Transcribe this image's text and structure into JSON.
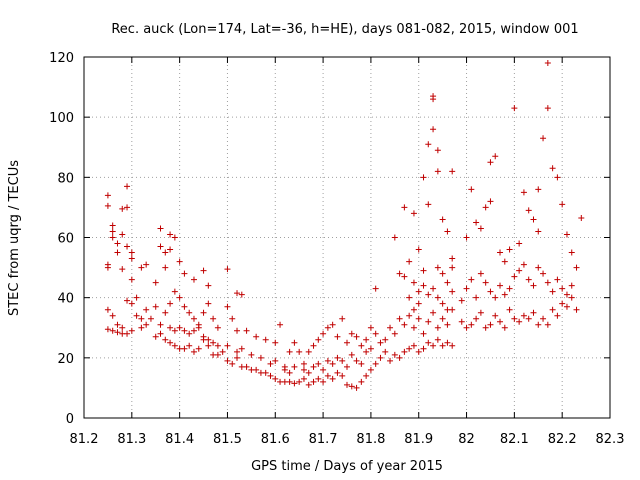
{
  "chart_data": {
    "type": "scatter",
    "title": "Rec. auck (Lon=174, Lat=-36, h=HE), days 081-082, 2015, window 001",
    "xlabel": "GPS time / Days of year 2015",
    "ylabel": "STEC from uqrg / TECUs",
    "xlim": [
      81.2,
      82.3
    ],
    "ylim": [
      0,
      120
    ],
    "x_ticks": [
      "81.2",
      "81.3",
      "81.4",
      "81.5",
      "81.6",
      "81.7",
      "81.8",
      "81.9",
      "82",
      "82.1",
      "82.2",
      "82.3"
    ],
    "y_ticks": [
      "0",
      "20",
      "40",
      "60",
      "80",
      "100",
      "120"
    ],
    "grid": true,
    "marker": "+",
    "color": "#c00000",
    "series": [
      {
        "points": [
          [
            81.25,
            74
          ],
          [
            81.25,
            70.5
          ],
          [
            81.25,
            51
          ],
          [
            81.25,
            50
          ],
          [
            81.26,
            64
          ],
          [
            81.26,
            62
          ],
          [
            81.26,
            60
          ],
          [
            81.27,
            58
          ],
          [
            81.27,
            55
          ],
          [
            81.28,
            69.5
          ],
          [
            81.28,
            61
          ],
          [
            81.28,
            49.5
          ],
          [
            81.29,
            77
          ],
          [
            81.29,
            70
          ],
          [
            81.29,
            57
          ],
          [
            81.3,
            55
          ],
          [
            81.3,
            53
          ],
          [
            81.3,
            46
          ],
          [
            81.31,
            40
          ],
          [
            81.32,
            50
          ],
          [
            81.33,
            51
          ],
          [
            81.35,
            45
          ],
          [
            81.36,
            63
          ],
          [
            81.36,
            57
          ],
          [
            81.37,
            55
          ],
          [
            81.37,
            50
          ],
          [
            81.38,
            61
          ],
          [
            81.38,
            56
          ],
          [
            81.39,
            60
          ],
          [
            81.4,
            52
          ],
          [
            81.41,
            48
          ],
          [
            81.43,
            46
          ],
          [
            81.45,
            49
          ],
          [
            81.46,
            44
          ],
          [
            81.5,
            49.5
          ],
          [
            81.52,
            41.5
          ],
          [
            81.53,
            41
          ],
          [
            81.25,
            36
          ],
          [
            81.26,
            34
          ],
          [
            81.27,
            31
          ],
          [
            81.28,
            30
          ],
          [
            81.29,
            39
          ],
          [
            81.3,
            38
          ],
          [
            81.31,
            34
          ],
          [
            81.32,
            33
          ],
          [
            81.33,
            36
          ],
          [
            81.34,
            33
          ],
          [
            81.35,
            37
          ],
          [
            81.36,
            31
          ],
          [
            81.37,
            35
          ],
          [
            81.38,
            38
          ],
          [
            81.39,
            42
          ],
          [
            81.4,
            40
          ],
          [
            81.41,
            37
          ],
          [
            81.42,
            35
          ],
          [
            81.43,
            33
          ],
          [
            81.44,
            31
          ],
          [
            81.45,
            35
          ],
          [
            81.46,
            38
          ],
          [
            81.47,
            33
          ],
          [
            81.48,
            30
          ],
          [
            81.5,
            37
          ],
          [
            81.51,
            33
          ],
          [
            81.52,
            29
          ],
          [
            81.54,
            29
          ],
          [
            81.56,
            27
          ],
          [
            81.58,
            26
          ],
          [
            81.6,
            25
          ],
          [
            81.61,
            31
          ],
          [
            81.25,
            29.5
          ],
          [
            81.26,
            29
          ],
          [
            81.27,
            28.5
          ],
          [
            81.28,
            28
          ],
          [
            81.29,
            28
          ],
          [
            81.3,
            29
          ],
          [
            81.32,
            30
          ],
          [
            81.33,
            31
          ],
          [
            81.35,
            27
          ],
          [
            81.36,
            28
          ],
          [
            81.37,
            26
          ],
          [
            81.38,
            25
          ],
          [
            81.39,
            24
          ],
          [
            81.4,
            23
          ],
          [
            81.41,
            23
          ],
          [
            81.42,
            24
          ],
          [
            81.43,
            22
          ],
          [
            81.44,
            23
          ],
          [
            81.45,
            26
          ],
          [
            81.46,
            24
          ],
          [
            81.47,
            21
          ],
          [
            81.48,
            21
          ],
          [
            81.49,
            22
          ],
          [
            81.5,
            19
          ],
          [
            81.51,
            18
          ],
          [
            81.52,
            20
          ],
          [
            81.53,
            17
          ],
          [
            81.54,
            17
          ],
          [
            81.55,
            16
          ],
          [
            81.56,
            16
          ],
          [
            81.57,
            15
          ],
          [
            81.58,
            15
          ],
          [
            81.59,
            14
          ],
          [
            81.6,
            13
          ],
          [
            81.61,
            12
          ],
          [
            81.62,
            12
          ],
          [
            81.38,
            30
          ],
          [
            81.39,
            29
          ],
          [
            81.4,
            30
          ],
          [
            81.41,
            29
          ],
          [
            81.42,
            28
          ],
          [
            81.43,
            29
          ],
          [
            81.44,
            30
          ],
          [
            81.45,
            27
          ],
          [
            81.46,
            26
          ],
          [
            81.47,
            25
          ],
          [
            81.48,
            24
          ],
          [
            81.5,
            24
          ],
          [
            81.52,
            22
          ],
          [
            81.53,
            23
          ],
          [
            81.55,
            21
          ],
          [
            81.57,
            20
          ],
          [
            81.59,
            18
          ],
          [
            81.6,
            19
          ],
          [
            81.62,
            17
          ],
          [
            81.63,
            22
          ],
          [
            81.64,
            25
          ],
          [
            81.65,
            22
          ],
          [
            81.66,
            18
          ],
          [
            81.63,
            12
          ],
          [
            81.64,
            11.5
          ],
          [
            81.65,
            12
          ],
          [
            81.66,
            13
          ],
          [
            81.67,
            11
          ],
          [
            81.68,
            12
          ],
          [
            81.69,
            13
          ],
          [
            81.7,
            12
          ],
          [
            81.71,
            14
          ],
          [
            81.72,
            13
          ],
          [
            81.73,
            15
          ],
          [
            81.74,
            14
          ],
          [
            81.75,
            11
          ],
          [
            81.76,
            10.5
          ],
          [
            81.77,
            10
          ],
          [
            81.78,
            12
          ],
          [
            81.79,
            14
          ],
          [
            81.62,
            16
          ],
          [
            81.63,
            15
          ],
          [
            81.64,
            17
          ],
          [
            81.66,
            16
          ],
          [
            81.67,
            15
          ],
          [
            81.68,
            17
          ],
          [
            81.69,
            18
          ],
          [
            81.7,
            16
          ],
          [
            81.71,
            19
          ],
          [
            81.72,
            18
          ],
          [
            81.73,
            20
          ],
          [
            81.74,
            19
          ],
          [
            81.75,
            17
          ],
          [
            81.76,
            21
          ],
          [
            81.77,
            19
          ],
          [
            81.78,
            18
          ],
          [
            81.79,
            22
          ],
          [
            81.67,
            22
          ],
          [
            81.68,
            24
          ],
          [
            81.69,
            26
          ],
          [
            81.7,
            28
          ],
          [
            81.71,
            30
          ],
          [
            81.72,
            31
          ],
          [
            81.73,
            27
          ],
          [
            81.74,
            33
          ],
          [
            81.75,
            25
          ],
          [
            81.76,
            28
          ],
          [
            81.77,
            27
          ],
          [
            81.78,
            24
          ],
          [
            81.79,
            26
          ],
          [
            81.8,
            30
          ],
          [
            81.81,
            28
          ],
          [
            81.82,
            25
          ],
          [
            81.8,
            16
          ],
          [
            81.81,
            18
          ],
          [
            81.82,
            20
          ],
          [
            81.83,
            22
          ],
          [
            81.84,
            19
          ],
          [
            81.85,
            21
          ],
          [
            81.86,
            20
          ],
          [
            81.87,
            22
          ],
          [
            81.88,
            23
          ],
          [
            81.89,
            24
          ],
          [
            81.9,
            22
          ],
          [
            81.91,
            23
          ],
          [
            81.92,
            25
          ],
          [
            81.93,
            24
          ],
          [
            81.94,
            26
          ],
          [
            81.95,
            24
          ],
          [
            81.96,
            25
          ],
          [
            81.97,
            24
          ],
          [
            81.8,
            23
          ],
          [
            81.81,
            43
          ],
          [
            81.83,
            26
          ],
          [
            81.84,
            30
          ],
          [
            81.85,
            28
          ],
          [
            81.86,
            33
          ],
          [
            81.87,
            31
          ],
          [
            81.88,
            34
          ],
          [
            81.89,
            30
          ],
          [
            81.9,
            33
          ],
          [
            81.91,
            28
          ],
          [
            81.92,
            32
          ],
          [
            81.93,
            35
          ],
          [
            81.94,
            30
          ],
          [
            81.95,
            33
          ],
          [
            81.96,
            31
          ],
          [
            81.97,
            36
          ],
          [
            81.85,
            60
          ],
          [
            81.86,
            48
          ],
          [
            81.87,
            47
          ],
          [
            81.87,
            70
          ],
          [
            81.88,
            52
          ],
          [
            81.89,
            68
          ],
          [
            81.89,
            45
          ],
          [
            81.9,
            56
          ],
          [
            81.9,
            42
          ],
          [
            81.91,
            80
          ],
          [
            81.91,
            49
          ],
          [
            81.92,
            91
          ],
          [
            81.92,
            71
          ],
          [
            81.93,
            107
          ],
          [
            81.93,
            106
          ],
          [
            81.93,
            96
          ],
          [
            81.94,
            89
          ],
          [
            81.94,
            82
          ],
          [
            81.94,
            50
          ],
          [
            81.95,
            66
          ],
          [
            81.95,
            48
          ],
          [
            81.96,
            62
          ],
          [
            81.96,
            45
          ],
          [
            81.97,
            82
          ],
          [
            81.97,
            53
          ],
          [
            81.97,
            50
          ],
          [
            81.88,
            40
          ],
          [
            81.89,
            36
          ],
          [
            81.9,
            38
          ],
          [
            81.91,
            44
          ],
          [
            81.92,
            41
          ],
          [
            81.93,
            43
          ],
          [
            81.94,
            40
          ],
          [
            81.95,
            38
          ],
          [
            81.96,
            36
          ],
          [
            81.97,
            42
          ],
          [
            81.99,
            32
          ],
          [
            82,
            30
          ],
          [
            82.01,
            31
          ],
          [
            82.02,
            33
          ],
          [
            82.03,
            35
          ],
          [
            82.04,
            30
          ],
          [
            82.05,
            31
          ],
          [
            82.06,
            34
          ],
          [
            82.07,
            32
          ],
          [
            82.08,
            30
          ],
          [
            82.09,
            36
          ],
          [
            82.1,
            33
          ],
          [
            82.11,
            32
          ],
          [
            82.12,
            34
          ],
          [
            82.13,
            33
          ],
          [
            82.14,
            35
          ],
          [
            82.15,
            31
          ],
          [
            82.16,
            33
          ],
          [
            82.17,
            31
          ],
          [
            82.18,
            36
          ],
          [
            82.19,
            34
          ],
          [
            82.2,
            38
          ],
          [
            82.21,
            37
          ],
          [
            82.22,
            40
          ],
          [
            82.23,
            36
          ],
          [
            81.99,
            39
          ],
          [
            82,
            43
          ],
          [
            82.01,
            46
          ],
          [
            82.02,
            40
          ],
          [
            82.03,
            48
          ],
          [
            82.04,
            45
          ],
          [
            82.05,
            42
          ],
          [
            82.06,
            40
          ],
          [
            82.07,
            44
          ],
          [
            82.08,
            41
          ],
          [
            82.09,
            43
          ],
          [
            82.1,
            47
          ],
          [
            82.11,
            49
          ],
          [
            82.12,
            51
          ],
          [
            82.13,
            46
          ],
          [
            82.14,
            44
          ],
          [
            82.15,
            50
          ],
          [
            82.16,
            48
          ],
          [
            82.17,
            45
          ],
          [
            82.18,
            42
          ],
          [
            82.19,
            46
          ],
          [
            82.2,
            43
          ],
          [
            82.21,
            41
          ],
          [
            82.22,
            44
          ],
          [
            82.23,
            50
          ],
          [
            82,
            60
          ],
          [
            82.01,
            76
          ],
          [
            82.02,
            65
          ],
          [
            82.03,
            63
          ],
          [
            82.04,
            70
          ],
          [
            82.05,
            72
          ],
          [
            82.05,
            85
          ],
          [
            82.06,
            87
          ],
          [
            82.07,
            55
          ],
          [
            82.08,
            52
          ],
          [
            82.09,
            56
          ],
          [
            82.1,
            103
          ],
          [
            82.11,
            58
          ],
          [
            82.12,
            75
          ],
          [
            82.13,
            69
          ],
          [
            82.14,
            66
          ],
          [
            82.15,
            76
          ],
          [
            82.15,
            62
          ],
          [
            82.16,
            93
          ],
          [
            82.17,
            118
          ],
          [
            82.17,
            103
          ],
          [
            82.18,
            83
          ],
          [
            82.19,
            80
          ],
          [
            82.2,
            71
          ],
          [
            82.21,
            61
          ],
          [
            82.22,
            55
          ],
          [
            82.24,
            66.5
          ]
        ]
      }
    ]
  }
}
